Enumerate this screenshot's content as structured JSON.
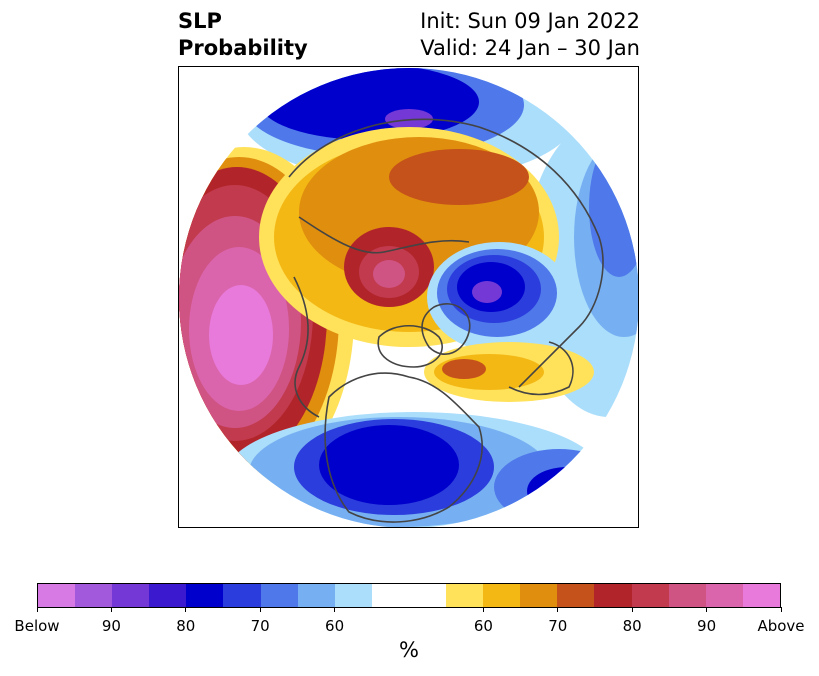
{
  "title": {
    "left_line1": "SLP",
    "left_line2": "Probability",
    "right_line1": "Init: Sun 09 Jan 2022",
    "right_line2": "Valid: 24 Jan – 30 Jan"
  },
  "colorbar": {
    "unit": "%",
    "labels": [
      "Below",
      "90",
      "80",
      "70",
      "60",
      "60",
      "70",
      "80",
      "90",
      "Above"
    ],
    "colors": [
      "#d87ae3",
      "#a259dc",
      "#7438d6",
      "#3a19cf",
      "#0000cc",
      "#2b3ddc",
      "#4f78ea",
      "#77b0f2",
      "#abdefb",
      "#ffffff",
      "#ffffff",
      "#ffe15a",
      "#f3b814",
      "#e08e0e",
      "#c5521a",
      "#b1242a",
      "#c23a4d",
      "#cf5484",
      "#db65ad",
      "#e77ada"
    ]
  },
  "map": {
    "projection": "north-polar-stereographic",
    "anomaly_regions": [
      {
        "name": "north-pacific-high",
        "sign": "above",
        "peak_percent": 95
      },
      {
        "name": "arctic-siberia-high",
        "sign": "above",
        "peak_percent": 80
      },
      {
        "name": "western-russia-high",
        "sign": "above",
        "peak_percent": 75
      },
      {
        "name": "north-atlantic-low",
        "sign": "below",
        "peak_percent": 90
      },
      {
        "name": "north-america-low",
        "sign": "below",
        "peak_percent": 80
      },
      {
        "name": "western-atlantic-low",
        "sign": "below",
        "peak_percent": 80
      },
      {
        "name": "eastern-europe-high",
        "sign": "above",
        "peak_percent": 70
      }
    ]
  }
}
